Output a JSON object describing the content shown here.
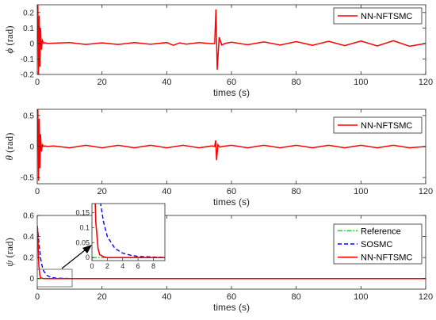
{
  "chart_data": [
    {
      "type": "line",
      "ylabel_symbol": "ϕ",
      "ylabel_unit": " (rad)",
      "xlabel": "times (s)",
      "xlim": [
        0,
        120
      ],
      "ylim": [
        -0.2,
        0.25
      ],
      "xticks": [
        0,
        20,
        40,
        60,
        80,
        100,
        120
      ],
      "yticks": [
        -0.2,
        -0.1,
        0,
        0.1,
        0.2
      ],
      "ytick_labels": [
        "-0.2",
        "-0.1",
        "0",
        "0.1",
        "0.2"
      ],
      "legend": "top-right",
      "series": [
        {
          "name": "NN-NFTSMC",
          "color": "#ff0000",
          "style": "solid",
          "x": [
            0,
            0.2,
            0.4,
            0.6,
            0.8,
            1.0,
            1.3,
            1.6,
            2,
            2.5,
            3,
            5,
            10,
            15,
            20,
            25,
            30,
            35,
            40,
            42,
            44,
            46,
            50,
            54,
            54.8,
            55.2,
            55.6,
            56.2,
            57,
            58,
            60,
            65,
            70,
            75,
            80,
            85,
            90,
            95,
            100,
            105,
            110,
            115,
            120
          ],
          "y": [
            0,
            0.25,
            -0.2,
            0.18,
            -0.15,
            0.1,
            -0.04,
            0.02,
            0.0,
            0.005,
            0.0,
            0.002,
            0.006,
            -0.006,
            0.004,
            -0.006,
            0.006,
            -0.005,
            0.006,
            -0.012,
            0.004,
            -0.004,
            0.006,
            -0.002,
            0.0,
            0.22,
            -0.17,
            0.04,
            -0.01,
            0.0,
            0.008,
            -0.008,
            0.01,
            -0.01,
            0.012,
            -0.012,
            0.014,
            -0.014,
            0.016,
            -0.016,
            0.018,
            -0.018,
            0.0
          ]
        }
      ]
    },
    {
      "type": "line",
      "ylabel_symbol": "θ",
      "ylabel_unit": " (rad)",
      "xlabel": "times (s)",
      "xlim": [
        0,
        120
      ],
      "ylim": [
        -0.6,
        0.6
      ],
      "xticks": [
        0,
        20,
        40,
        60,
        80,
        100,
        120
      ],
      "yticks": [
        -0.5,
        0,
        0.5
      ],
      "ytick_labels": [
        "-0.5",
        "0",
        "0.5"
      ],
      "legend": "top-right",
      "series": [
        {
          "name": "NN-NFTSMC",
          "color": "#ff0000",
          "style": "solid",
          "x": [
            0,
            0.2,
            0.4,
            0.6,
            0.8,
            1.0,
            1.3,
            1.6,
            2,
            2.5,
            3,
            5,
            10,
            15,
            20,
            25,
            30,
            35,
            40,
            45,
            50,
            54,
            54.8,
            55.1,
            55.4,
            55.8,
            56.4,
            57,
            60,
            65,
            70,
            75,
            80,
            85,
            90,
            95,
            100,
            105,
            110,
            115,
            120
          ],
          "y": [
            0,
            0.6,
            -0.55,
            0.45,
            -0.35,
            0.2,
            -0.08,
            0.03,
            0.0,
            0.01,
            0.0,
            0.01,
            -0.02,
            0.02,
            -0.02,
            0.02,
            -0.02,
            0.02,
            -0.02,
            0.02,
            -0.02,
            0.01,
            0.0,
            0.1,
            -0.22,
            0.03,
            -0.01,
            0.0,
            0.02,
            -0.02,
            0.02,
            -0.02,
            0.02,
            -0.02,
            0.02,
            -0.02,
            0.02,
            -0.02,
            0.02,
            -0.02,
            0.0
          ]
        }
      ]
    },
    {
      "type": "line",
      "ylabel_symbol": "ψ",
      "ylabel_unit": " (rad)",
      "xlabel": "times (s)",
      "xlim": [
        0,
        120
      ],
      "ylim": [
        -0.1,
        0.6
      ],
      "xticks": [
        0,
        20,
        40,
        60,
        80,
        100,
        120
      ],
      "yticks": [
        0,
        0.2,
        0.4,
        0.6
      ],
      "ytick_labels": [
        "0",
        "0.2",
        "0.4",
        "0.6"
      ],
      "legend": "right",
      "series": [
        {
          "name": "Reference",
          "color": "#00ee00",
          "style": "dashdot",
          "x": [
            0,
            120
          ],
          "y": [
            0,
            0
          ]
        },
        {
          "name": "SOSMC",
          "color": "#0000ff",
          "style": "dashed",
          "x": [
            0,
            0.2,
            0.5,
            1,
            1.5,
            2,
            3,
            4,
            5,
            6,
            8,
            10,
            120
          ],
          "y": [
            0.5,
            0.45,
            0.35,
            0.2,
            0.12,
            0.07,
            0.03,
            0.015,
            0.008,
            0.004,
            0.002,
            0.0,
            0.0
          ]
        },
        {
          "name": "NN-NFTSMC",
          "color": "#ff0000",
          "style": "solid",
          "x": [
            0,
            0.15,
            0.3,
            0.5,
            0.8,
            1.0,
            1.5,
            2,
            3,
            5,
            8,
            120
          ],
          "y": [
            0.5,
            0.45,
            0.3,
            0.12,
            0.03,
            0.01,
            0.003,
            0.0,
            0.0,
            0.0,
            0.0,
            0.0
          ]
        }
      ],
      "inset": {
        "xlim": [
          0,
          9.5
        ],
        "ylim": [
          -0.01,
          0.18
        ],
        "xticks": [
          0,
          2,
          4,
          6,
          8
        ],
        "yticks": [
          0,
          0.05,
          0.1,
          0.15
        ],
        "ytick_labels": [
          "0",
          "0.05",
          "0.1",
          "0.15"
        ]
      }
    }
  ]
}
